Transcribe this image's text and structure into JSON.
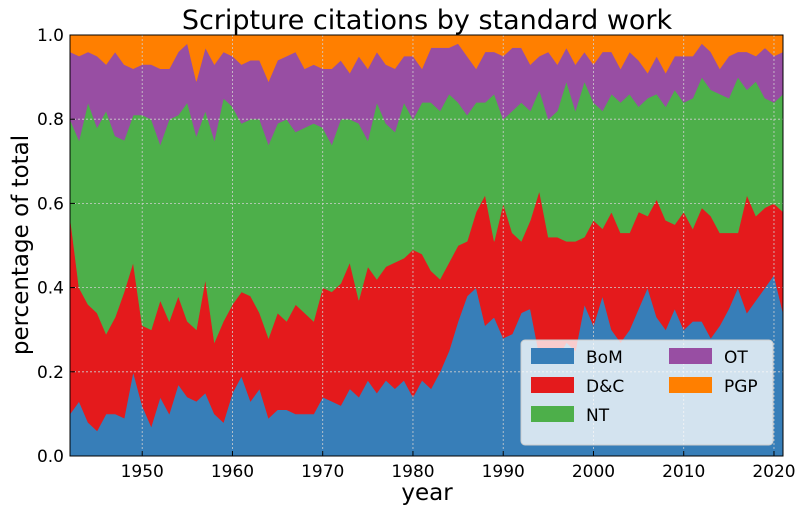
{
  "chart_data": {
    "type": "area",
    "stacked": true,
    "normalized": true,
    "title": "Scripture citations by standard work",
    "xlabel": "year",
    "ylabel": "percentage of total",
    "xlim": [
      1942,
      2021
    ],
    "ylim": [
      0,
      1
    ],
    "xticks": [
      1950,
      1960,
      1970,
      1980,
      1990,
      2000,
      2010,
      2020
    ],
    "yticks": [
      "0.0",
      "0.2",
      "0.4",
      "0.6",
      "0.8",
      "1.0"
    ],
    "grid": true,
    "legend_position": "lower-right",
    "years": [
      1942,
      1943,
      1944,
      1945,
      1946,
      1947,
      1948,
      1949,
      1950,
      1951,
      1952,
      1953,
      1954,
      1955,
      1956,
      1957,
      1958,
      1959,
      1960,
      1961,
      1962,
      1963,
      1964,
      1965,
      1966,
      1967,
      1968,
      1969,
      1970,
      1971,
      1972,
      1973,
      1974,
      1975,
      1976,
      1977,
      1978,
      1979,
      1980,
      1981,
      1982,
      1983,
      1984,
      1985,
      1986,
      1987,
      1988,
      1989,
      1990,
      1991,
      1992,
      1993,
      1994,
      1995,
      1996,
      1997,
      1998,
      1999,
      2000,
      2001,
      2002,
      2003,
      2004,
      2005,
      2006,
      2007,
      2008,
      2009,
      2010,
      2011,
      2012,
      2013,
      2014,
      2015,
      2016,
      2017,
      2018,
      2019,
      2020,
      2021
    ],
    "series": [
      {
        "name": "BoM",
        "color": "#377eb8",
        "cumulative": [
          0.1,
          0.13,
          0.08,
          0.06,
          0.1,
          0.1,
          0.09,
          0.2,
          0.12,
          0.07,
          0.14,
          0.1,
          0.17,
          0.14,
          0.13,
          0.15,
          0.1,
          0.08,
          0.15,
          0.19,
          0.13,
          0.16,
          0.09,
          0.11,
          0.11,
          0.1,
          0.1,
          0.1,
          0.14,
          0.13,
          0.12,
          0.16,
          0.14,
          0.18,
          0.15,
          0.18,
          0.16,
          0.18,
          0.14,
          0.18,
          0.16,
          0.2,
          0.25,
          0.32,
          0.38,
          0.4,
          0.31,
          0.33,
          0.28,
          0.29,
          0.34,
          0.35,
          0.24,
          0.25,
          0.23,
          0.27,
          0.25,
          0.36,
          0.31,
          0.38,
          0.3,
          0.27,
          0.3,
          0.35,
          0.4,
          0.33,
          0.3,
          0.35,
          0.3,
          0.32,
          0.32,
          0.28,
          0.31,
          0.35,
          0.4,
          0.34,
          0.37,
          0.4,
          0.43,
          0.34
        ]
      },
      {
        "name": "D&C",
        "color": "#e41a1c",
        "cumulative": [
          0.57,
          0.4,
          0.36,
          0.34,
          0.29,
          0.33,
          0.39,
          0.46,
          0.31,
          0.3,
          0.37,
          0.32,
          0.38,
          0.32,
          0.3,
          0.42,
          0.27,
          0.32,
          0.36,
          0.39,
          0.38,
          0.34,
          0.28,
          0.34,
          0.32,
          0.36,
          0.34,
          0.32,
          0.4,
          0.39,
          0.41,
          0.46,
          0.37,
          0.45,
          0.42,
          0.45,
          0.46,
          0.47,
          0.49,
          0.48,
          0.44,
          0.42,
          0.46,
          0.5,
          0.51,
          0.58,
          0.62,
          0.51,
          0.6,
          0.53,
          0.51,
          0.56,
          0.63,
          0.52,
          0.52,
          0.51,
          0.51,
          0.52,
          0.56,
          0.54,
          0.58,
          0.53,
          0.53,
          0.58,
          0.57,
          0.61,
          0.56,
          0.55,
          0.58,
          0.54,
          0.59,
          0.57,
          0.53,
          0.53,
          0.53,
          0.62,
          0.57,
          0.59,
          0.6,
          0.58
        ]
      },
      {
        "name": "NT",
        "color": "#4daf4a",
        "cumulative": [
          0.8,
          0.75,
          0.84,
          0.78,
          0.82,
          0.76,
          0.75,
          0.81,
          0.81,
          0.8,
          0.74,
          0.8,
          0.81,
          0.84,
          0.76,
          0.82,
          0.75,
          0.85,
          0.83,
          0.79,
          0.8,
          0.8,
          0.74,
          0.79,
          0.8,
          0.77,
          0.78,
          0.79,
          0.78,
          0.74,
          0.8,
          0.8,
          0.79,
          0.75,
          0.84,
          0.79,
          0.77,
          0.84,
          0.8,
          0.84,
          0.84,
          0.82,
          0.86,
          0.84,
          0.81,
          0.84,
          0.84,
          0.86,
          0.8,
          0.82,
          0.84,
          0.82,
          0.87,
          0.8,
          0.82,
          0.89,
          0.82,
          0.89,
          0.84,
          0.82,
          0.86,
          0.84,
          0.86,
          0.83,
          0.85,
          0.86,
          0.83,
          0.87,
          0.84,
          0.85,
          0.9,
          0.87,
          0.86,
          0.85,
          0.9,
          0.87,
          0.89,
          0.85,
          0.84,
          0.86
        ]
      },
      {
        "name": "OT",
        "color": "#984ea3",
        "cumulative": [
          0.96,
          0.95,
          0.96,
          0.95,
          0.93,
          0.96,
          0.93,
          0.92,
          0.93,
          0.93,
          0.92,
          0.92,
          0.96,
          0.98,
          0.89,
          0.97,
          0.93,
          0.96,
          0.95,
          0.93,
          0.94,
          0.94,
          0.89,
          0.94,
          0.95,
          0.96,
          0.92,
          0.93,
          0.92,
          0.92,
          0.94,
          0.91,
          0.95,
          0.92,
          0.96,
          0.93,
          0.92,
          0.95,
          0.95,
          0.92,
          0.97,
          0.97,
          0.97,
          0.98,
          0.95,
          0.92,
          0.96,
          0.96,
          0.95,
          0.97,
          0.97,
          0.93,
          0.95,
          0.96,
          0.93,
          0.97,
          0.93,
          0.96,
          0.93,
          0.96,
          0.96,
          0.92,
          0.96,
          0.94,
          0.91,
          0.95,
          0.91,
          0.95,
          0.95,
          0.95,
          0.98,
          0.96,
          0.92,
          0.95,
          0.96,
          0.96,
          0.95,
          0.97,
          0.95,
          0.96
        ]
      },
      {
        "name": "PGP",
        "color": "#ff7f00",
        "cumulative": [
          1,
          1,
          1,
          1,
          1,
          1,
          1,
          1,
          1,
          1,
          1,
          1,
          1,
          1,
          1,
          1,
          1,
          1,
          1,
          1,
          1,
          1,
          1,
          1,
          1,
          1,
          1,
          1,
          1,
          1,
          1,
          1,
          1,
          1,
          1,
          1,
          1,
          1,
          1,
          1,
          1,
          1,
          1,
          1,
          1,
          1,
          1,
          1,
          1,
          1,
          1,
          1,
          1,
          1,
          1,
          1,
          1,
          1,
          1,
          1,
          1,
          1,
          1,
          1,
          1,
          1,
          1,
          1,
          1,
          1,
          1,
          1,
          1,
          1,
          1,
          1,
          1,
          1,
          1,
          1
        ]
      }
    ],
    "legend": [
      {
        "name": "BoM",
        "color": "#377eb8"
      },
      {
        "name": "D&C",
        "color": "#e41a1c"
      },
      {
        "name": "NT",
        "color": "#4daf4a"
      },
      {
        "name": "OT",
        "color": "#984ea3"
      },
      {
        "name": "PGP",
        "color": "#ff7f00"
      }
    ]
  }
}
